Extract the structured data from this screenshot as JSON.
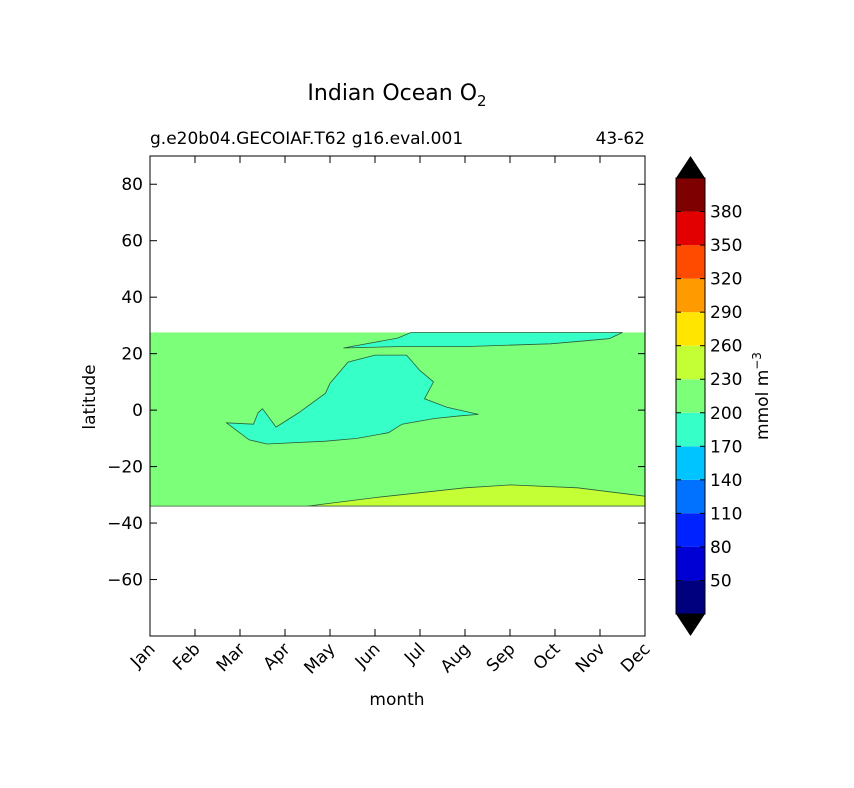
{
  "chart_data": {
    "type": "heatmap",
    "title_main": "Indian Ocean O",
    "title_sub": "2",
    "subtitle_left": "g.e20b04.GECOIAF.T62 g16.eval.001",
    "subtitle_right": "43-62",
    "xlabel": "month",
    "ylabel": "latitude",
    "x_categories": [
      "Jan",
      "Feb",
      "Mar",
      "Apr",
      "May",
      "Jun",
      "Jul",
      "Aug",
      "Sep",
      "Oct",
      "Nov",
      "Dec"
    ],
    "xlim": [
      0,
      11
    ],
    "ylim": [
      -80,
      90
    ],
    "y_ticks": [
      80,
      60,
      40,
      20,
      0,
      -20,
      -40,
      -60
    ],
    "y_tick_labels": [
      "80",
      "60",
      "40",
      "20",
      "0",
      "−20",
      "−40",
      "−60"
    ],
    "data_lat_range": [
      -34,
      27.5
    ],
    "background_band": {
      "range": "200-230",
      "color": "#7cff79"
    },
    "contours": [
      {
        "range": "170-200",
        "color": "#36ffc8",
        "name": "low-oxygen-core",
        "points": [
          [
            2.8,
            -6
          ],
          [
            3.3,
            -1
          ],
          [
            3.9,
            6
          ],
          [
            4.0,
            9.5
          ],
          [
            4.4,
            17
          ],
          [
            5.0,
            19.5
          ],
          [
            5.7,
            19.5
          ],
          [
            6.0,
            14
          ],
          [
            6.3,
            10
          ],
          [
            6.1,
            4
          ],
          [
            6.6,
            1
          ],
          [
            7.3,
            -1.5
          ],
          [
            6.9,
            -2
          ],
          [
            6.3,
            -3
          ],
          [
            5.6,
            -5
          ],
          [
            5.3,
            -8
          ],
          [
            4.6,
            -10
          ],
          [
            3.9,
            -11
          ],
          [
            2.6,
            -12
          ],
          [
            2.2,
            -10.5
          ],
          [
            1.7,
            -4.5
          ],
          [
            2.3,
            -5
          ],
          [
            2.4,
            -1
          ],
          [
            2.5,
            0.5
          ]
        ]
      },
      {
        "range": "170-200",
        "color": "#36ffc8",
        "name": "northern-strip",
        "points": [
          [
            4.3,
            22
          ],
          [
            5.5,
            22.5
          ],
          [
            7.0,
            22.5
          ],
          [
            8.9,
            23.5
          ],
          [
            10.2,
            25.3
          ],
          [
            10.5,
            27.5
          ],
          [
            5.8,
            27.5
          ],
          [
            5.5,
            25.5
          ]
        ]
      },
      {
        "range": "230-260",
        "color": "#c4ff36",
        "name": "southern-band",
        "points": [
          [
            3.5,
            -34
          ],
          [
            5.0,
            -31
          ],
          [
            7.0,
            -27.5
          ],
          [
            8.0,
            -26.5
          ],
          [
            9.5,
            -27.5
          ],
          [
            11,
            -30.5
          ],
          [
            11,
            -34
          ]
        ]
      }
    ],
    "colorbar": {
      "label": "mmol m",
      "label_exp": "−3",
      "tick_labels": [
        "50",
        "80",
        "110",
        "140",
        "170",
        "200",
        "230",
        "260",
        "290",
        "320",
        "350",
        "380"
      ],
      "bounds": [
        20,
        410
      ],
      "colors": [
        "#00007f",
        "#0000d4",
        "#0022ff",
        "#0072ff",
        "#00c4ff",
        "#36ffc8",
        "#7cff79",
        "#c4ff36",
        "#ffe500",
        "#ff9a00",
        "#ff4b00",
        "#e30000",
        "#7f0000"
      ],
      "extend_low_color": "#000000",
      "extend_high_color": "#000000"
    }
  }
}
